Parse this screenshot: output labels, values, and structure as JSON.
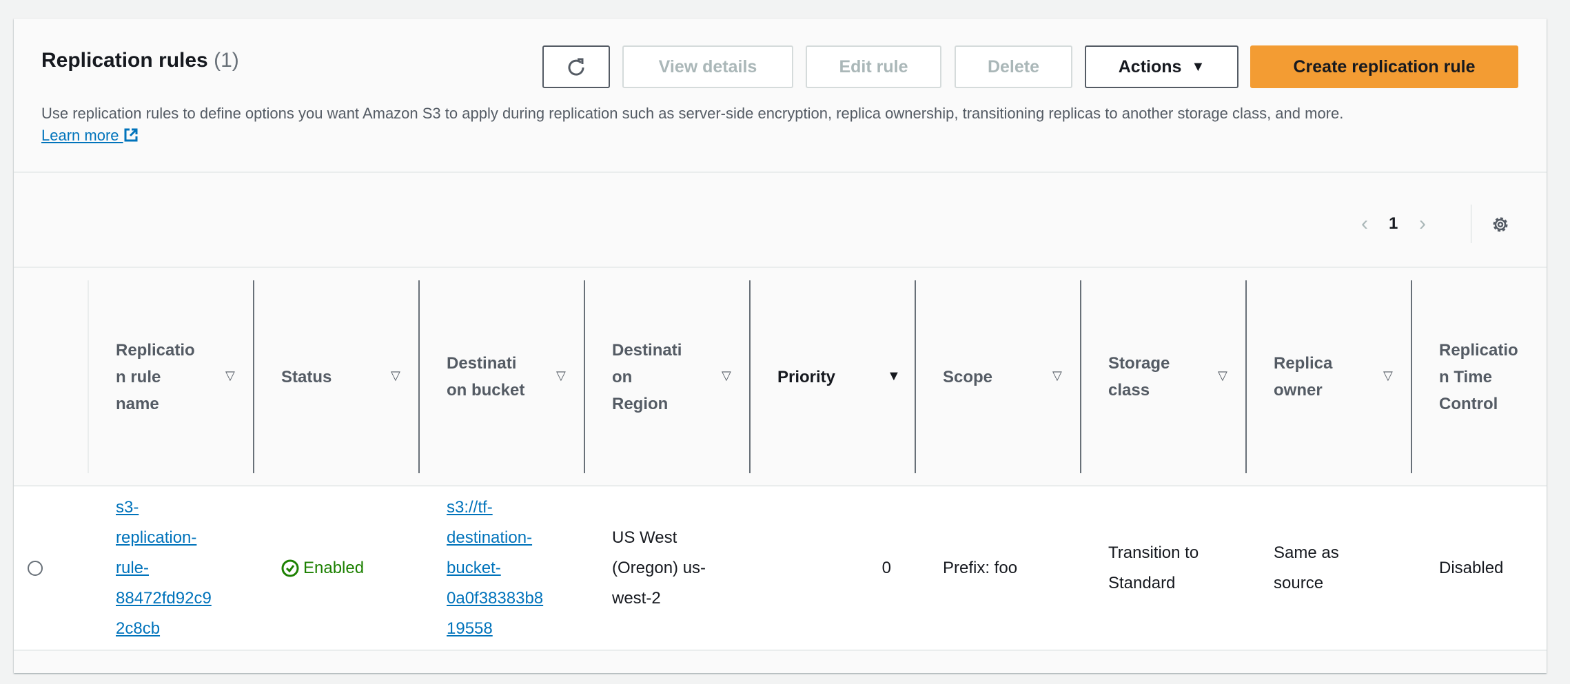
{
  "header": {
    "title": "Replication rules",
    "count": "(1)",
    "description": "Use replication rules to define options you want Amazon S3 to apply during replication such as server-side encryption, replica ownership, transitioning replicas to another storage class, and more.",
    "learn_more": "Learn more"
  },
  "toolbar": {
    "refresh_icon": "refresh-icon",
    "view_details": "View details",
    "edit_rule": "Edit rule",
    "delete": "Delete",
    "actions": "Actions",
    "create": "Create replication rule"
  },
  "pagination": {
    "current_page": "1"
  },
  "colors": {
    "primary": "#f39c33",
    "link": "#0073bb",
    "success": "#1d8102"
  },
  "table": {
    "columns": [
      {
        "label": "Replication rule name",
        "sort": "none"
      },
      {
        "label": "Status",
        "sort": "none"
      },
      {
        "label": "Destination bucket",
        "sort": "none"
      },
      {
        "label": "Destination Region",
        "sort": "none"
      },
      {
        "label": "Priority",
        "sort": "descending"
      },
      {
        "label": "Scope",
        "sort": "none"
      },
      {
        "label": "Storage class",
        "sort": "none"
      },
      {
        "label": "Replica owner",
        "sort": "none"
      },
      {
        "label": "Replication Time Control",
        "sort": "none"
      }
    ],
    "rows": [
      {
        "selected": false,
        "name": "s3-replication-rule-88472fd92c92c8cb",
        "status": "Enabled",
        "bucket": "s3://tf-destination-bucket-0a0f38383b819558",
        "region": "US West (Oregon) us-west-2",
        "priority": "0",
        "scope": "Prefix: foo",
        "storage_class": "Transition to Standard",
        "replica_owner": "Same as source",
        "rtc": "Disabled"
      }
    ]
  }
}
